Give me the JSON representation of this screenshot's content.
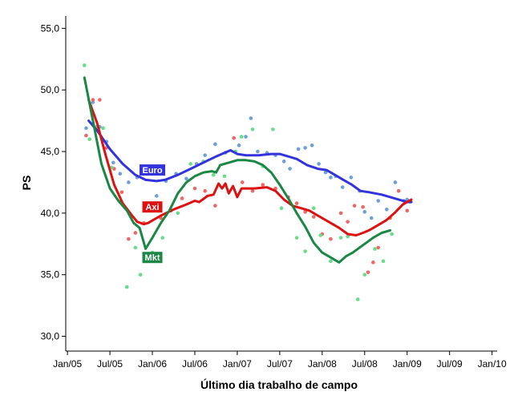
{
  "chart_data": {
    "type": "scatter",
    "title": "",
    "xlabel": "Último dia trabalho de campo",
    "ylabel": "PS",
    "x_ticks": [
      {
        "label": "Jan/05",
        "value": 2005.0
      },
      {
        "label": "Jul/05",
        "value": 2005.5
      },
      {
        "label": "Jan/06",
        "value": 2006.0
      },
      {
        "label": "Jul/06",
        "value": 2006.5
      },
      {
        "label": "Jan/07",
        "value": 2007.0
      },
      {
        "label": "Jul/07",
        "value": 2007.5
      },
      {
        "label": "Jan/08",
        "value": 2008.0
      },
      {
        "label": "Jul/08",
        "value": 2008.5
      },
      {
        "label": "Jan/09",
        "value": 2009.0
      },
      {
        "label": "Jul/09",
        "value": 2009.5
      },
      {
        "label": "Jan/10",
        "value": 2010.0
      }
    ],
    "y_ticks": [
      {
        "label": "30,0",
        "value": 30
      },
      {
        "label": "35,0",
        "value": 35
      },
      {
        "label": "40,0",
        "value": 40
      },
      {
        "label": "45,0",
        "value": 45
      },
      {
        "label": "50,0",
        "value": 50
      },
      {
        "label": "55,0",
        "value": 55
      }
    ],
    "xlim": [
      2004.98,
      2010.06
    ],
    "ylim": [
      28.8,
      56.0
    ],
    "grid": false,
    "series": [
      {
        "name": "Euro",
        "color": "#3333dd",
        "point_color": "#6f9fd8",
        "points": [
          [
            2005.22,
            46.9
          ],
          [
            2005.3,
            49.0
          ],
          [
            2005.38,
            47.0
          ],
          [
            2005.46,
            45.8
          ],
          [
            2005.54,
            44.1
          ],
          [
            2005.62,
            43.2
          ],
          [
            2005.72,
            42.5
          ],
          [
            2005.82,
            42.9
          ],
          [
            2006.05,
            41.4
          ],
          [
            2006.16,
            42.6
          ],
          [
            2006.28,
            43.2
          ],
          [
            2006.4,
            42.8
          ],
          [
            2006.52,
            44.0
          ],
          [
            2006.62,
            44.7
          ],
          [
            2006.74,
            45.6
          ],
          [
            2006.86,
            44.9
          ],
          [
            2007.02,
            45.5
          ],
          [
            2007.1,
            46.2
          ],
          [
            2007.16,
            47.7
          ],
          [
            2007.24,
            45.0
          ],
          [
            2007.35,
            44.9
          ],
          [
            2007.45,
            44.7
          ],
          [
            2007.55,
            44.2
          ],
          [
            2007.62,
            43.6
          ],
          [
            2007.72,
            45.2
          ],
          [
            2007.8,
            45.3
          ],
          [
            2007.88,
            45.5
          ],
          [
            2007.96,
            44.0
          ],
          [
            2008.04,
            43.3
          ],
          [
            2008.1,
            42.9
          ],
          [
            2008.16,
            43.0
          ],
          [
            2008.24,
            42.1
          ],
          [
            2008.34,
            42.9
          ],
          [
            2008.44,
            41.8
          ],
          [
            2008.5,
            40.1
          ],
          [
            2008.58,
            39.6
          ],
          [
            2008.66,
            41.0
          ],
          [
            2008.76,
            40.3
          ],
          [
            2008.86,
            42.5
          ],
          [
            2008.96,
            41.0
          ],
          [
            2009.0,
            41.1
          ]
        ],
        "fit": [
          [
            2005.25,
            47.5
          ],
          [
            2005.35,
            46.7
          ],
          [
            2005.5,
            45.2
          ],
          [
            2005.65,
            44.0
          ],
          [
            2005.8,
            43.1
          ],
          [
            2005.92,
            42.7
          ],
          [
            2006.05,
            42.6
          ],
          [
            2006.15,
            42.7
          ],
          [
            2006.3,
            43.1
          ],
          [
            2006.45,
            43.6
          ],
          [
            2006.6,
            44.1
          ],
          [
            2006.75,
            44.6
          ],
          [
            2006.85,
            44.9
          ],
          [
            2006.92,
            45.1
          ],
          [
            2007.0,
            44.8
          ],
          [
            2007.1,
            44.7
          ],
          [
            2007.25,
            44.7
          ],
          [
            2007.4,
            44.8
          ],
          [
            2007.5,
            44.8
          ],
          [
            2007.6,
            44.6
          ],
          [
            2007.7,
            44.4
          ],
          [
            2007.82,
            43.9
          ],
          [
            2007.95,
            43.6
          ],
          [
            2008.05,
            43.5
          ],
          [
            2008.15,
            43.1
          ],
          [
            2008.25,
            42.7
          ],
          [
            2008.35,
            42.3
          ],
          [
            2008.45,
            41.8
          ],
          [
            2008.55,
            41.7
          ],
          [
            2008.7,
            41.5
          ],
          [
            2008.85,
            41.2
          ],
          [
            2009.0,
            40.9
          ],
          [
            2009.05,
            40.9
          ]
        ]
      },
      {
        "name": "Axi",
        "color": "#dd1111",
        "point_color": "#ee6666",
        "points": [
          [
            2005.22,
            46.3
          ],
          [
            2005.3,
            49.2
          ],
          [
            2005.38,
            49.2
          ],
          [
            2005.46,
            45.3
          ],
          [
            2005.55,
            43.6
          ],
          [
            2005.64,
            41.7
          ],
          [
            2005.72,
            37.9
          ],
          [
            2005.8,
            38.4
          ],
          [
            2005.9,
            39.2
          ],
          [
            2006.1,
            39.6
          ],
          [
            2006.22,
            40.2
          ],
          [
            2006.35,
            41.2
          ],
          [
            2006.5,
            42.0
          ],
          [
            2006.62,
            41.8
          ],
          [
            2006.74,
            40.6
          ],
          [
            2006.86,
            42.3
          ],
          [
            2006.96,
            46.1
          ],
          [
            2007.06,
            42.5
          ],
          [
            2007.18,
            41.8
          ],
          [
            2007.3,
            42.3
          ],
          [
            2007.45,
            42.0
          ],
          [
            2007.6,
            41.3
          ],
          [
            2007.7,
            40.8
          ],
          [
            2007.8,
            40.1
          ],
          [
            2007.9,
            39.7
          ],
          [
            2008.0,
            38.3
          ],
          [
            2008.1,
            37.9
          ],
          [
            2008.22,
            40.0
          ],
          [
            2008.3,
            39.3
          ],
          [
            2008.38,
            40.6
          ],
          [
            2008.48,
            40.5
          ],
          [
            2008.54,
            35.2
          ],
          [
            2008.6,
            36.0
          ],
          [
            2008.66,
            37.2
          ],
          [
            2008.8,
            39.6
          ],
          [
            2008.9,
            41.8
          ],
          [
            2009.0,
            40.2
          ],
          [
            2009.04,
            41.0
          ]
        ],
        "fit": [
          [
            2005.25,
            49.2
          ],
          [
            2005.35,
            47.3
          ],
          [
            2005.45,
            44.7
          ],
          [
            2005.55,
            42.3
          ],
          [
            2005.65,
            40.8
          ],
          [
            2005.75,
            39.9
          ],
          [
            2005.82,
            39.3
          ],
          [
            2005.9,
            39.1
          ],
          [
            2005.95,
            39.2
          ],
          [
            2006.1,
            39.8
          ],
          [
            2006.25,
            40.3
          ],
          [
            2006.4,
            40.7
          ],
          [
            2006.5,
            41.0
          ],
          [
            2006.55,
            40.9
          ],
          [
            2006.65,
            41.4
          ],
          [
            2006.72,
            41.5
          ],
          [
            2006.78,
            42.4
          ],
          [
            2006.82,
            42.0
          ],
          [
            2006.86,
            42.4
          ],
          [
            2006.9,
            41.6
          ],
          [
            2006.95,
            42.2
          ],
          [
            2007.0,
            41.3
          ],
          [
            2007.05,
            42.0
          ],
          [
            2007.2,
            42.0
          ],
          [
            2007.35,
            42.1
          ],
          [
            2007.45,
            41.8
          ],
          [
            2007.55,
            41.1
          ],
          [
            2007.65,
            40.6
          ],
          [
            2007.75,
            40.4
          ],
          [
            2007.85,
            40.2
          ],
          [
            2007.95,
            39.8
          ],
          [
            2008.1,
            39.2
          ],
          [
            2008.2,
            38.8
          ],
          [
            2008.3,
            38.3
          ],
          [
            2008.4,
            38.2
          ],
          [
            2008.48,
            38.4
          ],
          [
            2008.55,
            38.6
          ],
          [
            2008.65,
            39.0
          ],
          [
            2008.75,
            39.4
          ],
          [
            2008.85,
            40.0
          ],
          [
            2008.95,
            40.7
          ],
          [
            2009.05,
            41.1
          ]
        ],
        "label_anchor": [
          2006.0,
          40.5
        ]
      },
      {
        "name": "Mkt",
        "color": "#1a8844",
        "point_color": "#66dd88",
        "points": [
          [
            2005.2,
            52.0
          ],
          [
            2005.26,
            46.0
          ],
          [
            2005.34,
            47.0
          ],
          [
            2005.42,
            46.9
          ],
          [
            2005.52,
            43.7
          ],
          [
            2005.62,
            40.9
          ],
          [
            2005.7,
            34.0
          ],
          [
            2005.8,
            37.2
          ],
          [
            2005.86,
            35.0
          ],
          [
            2006.0,
            36.8
          ],
          [
            2006.12,
            38.0
          ],
          [
            2006.3,
            40.0
          ],
          [
            2006.45,
            44.0
          ],
          [
            2006.6,
            44.2
          ],
          [
            2006.72,
            43.1
          ],
          [
            2006.85,
            43.0
          ],
          [
            2006.98,
            45.0
          ],
          [
            2007.05,
            46.2
          ],
          [
            2007.18,
            46.8
          ],
          [
            2007.3,
            43.8
          ],
          [
            2007.42,
            46.8
          ],
          [
            2007.52,
            40.4
          ],
          [
            2007.7,
            38.0
          ],
          [
            2007.8,
            36.9
          ],
          [
            2007.9,
            40.4
          ],
          [
            2007.98,
            38.2
          ],
          [
            2008.1,
            36.1
          ],
          [
            2008.22,
            38.0
          ],
          [
            2008.3,
            38.1
          ],
          [
            2008.42,
            33.0
          ],
          [
            2008.5,
            35.0
          ],
          [
            2008.62,
            37.1
          ],
          [
            2008.72,
            36.1
          ],
          [
            2008.82,
            38.3
          ]
        ],
        "fit": [
          [
            2005.2,
            51.0
          ],
          [
            2005.3,
            47.5
          ],
          [
            2005.4,
            44.0
          ],
          [
            2005.5,
            42.0
          ],
          [
            2005.6,
            41.0
          ],
          [
            2005.7,
            40.2
          ],
          [
            2005.78,
            39.2
          ],
          [
            2005.85,
            38.8
          ],
          [
            2005.92,
            37.1
          ],
          [
            2006.0,
            38.0
          ],
          [
            2006.1,
            39.2
          ],
          [
            2006.2,
            40.2
          ],
          [
            2006.3,
            41.6
          ],
          [
            2006.4,
            42.5
          ],
          [
            2006.5,
            43.0
          ],
          [
            2006.6,
            43.3
          ],
          [
            2006.7,
            43.4
          ],
          [
            2006.75,
            43.3
          ],
          [
            2006.8,
            43.9
          ],
          [
            2006.9,
            44.1
          ],
          [
            2007.0,
            44.3
          ],
          [
            2007.1,
            44.3
          ],
          [
            2007.2,
            44.2
          ],
          [
            2007.3,
            43.9
          ],
          [
            2007.4,
            43.3
          ],
          [
            2007.5,
            42.3
          ],
          [
            2007.6,
            41.2
          ],
          [
            2007.7,
            40.0
          ],
          [
            2007.8,
            38.9
          ],
          [
            2007.9,
            37.6
          ],
          [
            2008.0,
            36.8
          ],
          [
            2008.1,
            36.4
          ],
          [
            2008.2,
            36.0
          ],
          [
            2008.28,
            36.5
          ],
          [
            2008.36,
            36.8
          ],
          [
            2008.44,
            37.2
          ],
          [
            2008.52,
            37.6
          ],
          [
            2008.6,
            38.0
          ],
          [
            2008.7,
            38.4
          ],
          [
            2008.8,
            38.6
          ]
        ]
      }
    ],
    "series_labels": [
      {
        "name": "Euro",
        "x": 2006.0,
        "y": 43.5
      },
      {
        "name": "Axi",
        "x": 2006.0,
        "y": 40.5
      },
      {
        "name": "Mkt",
        "x": 2006.0,
        "y": 36.4
      }
    ]
  }
}
